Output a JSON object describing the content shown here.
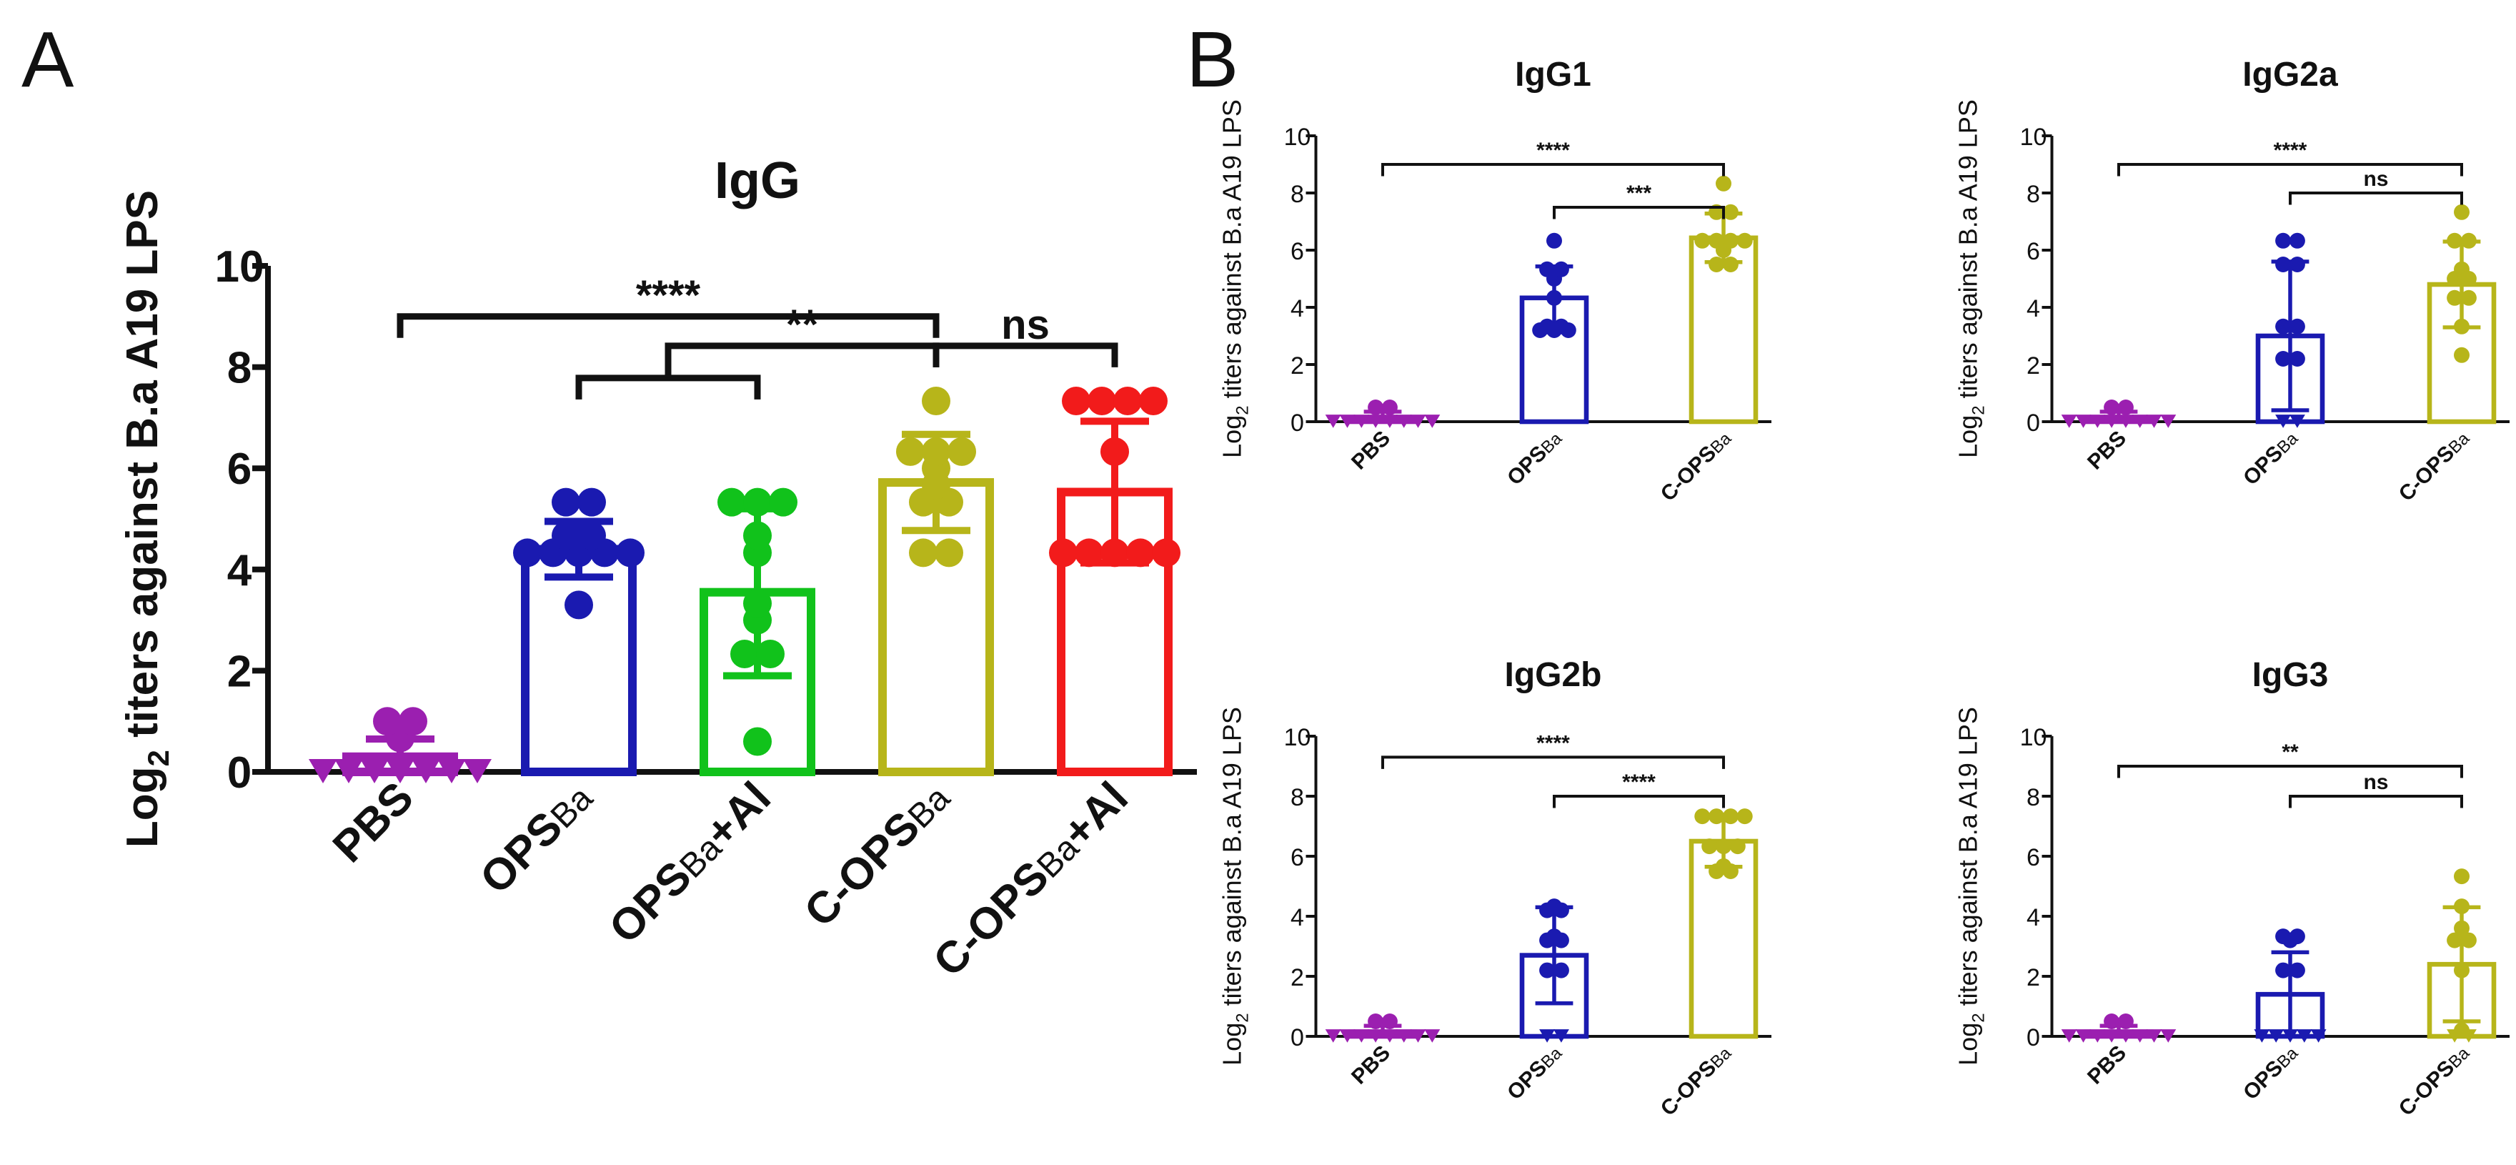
{
  "panels": {
    "a": "A",
    "b": "B"
  },
  "ylabel_main": "Log",
  "ylabel_sub": "2",
  "ylabel_rest": " titers against B.a A19 LPS",
  "colors": {
    "PBS": "#9b1fb0",
    "OPS": "#1a1ab0",
    "OPS_AL": "#11c21b",
    "COPS": "#b7b51a",
    "COPS_AL": "#f21b1b",
    "axis": "#111111"
  },
  "chart_data": [
    {
      "id": "A",
      "type": "bar",
      "title": "IgG",
      "ylim": [
        0,
        10
      ],
      "yticks": [
        0,
        2,
        4,
        6,
        8,
        10
      ],
      "categories": [
        {
          "main": "PBS",
          "sub": "",
          "tail": "",
          "color": "PBS",
          "mean": 0.3,
          "sd": 0.35,
          "points": [
            0,
            0,
            0,
            0,
            0,
            0,
            0,
            0.67,
            1.0,
            1.0
          ]
        },
        {
          "main": "OPS",
          "sub": "Ba",
          "tail": "",
          "color": "OPS",
          "mean": 4.4,
          "sd": 0.55,
          "points": [
            3.3,
            4.33,
            4.33,
            4.33,
            4.33,
            4.33,
            4.67,
            4.67,
            5.33,
            5.33
          ]
        },
        {
          "main": "OPS",
          "sub": "Ba",
          "tail": "+Al",
          "color": "OPS_AL",
          "mean": 3.55,
          "sd": 1.65,
          "points": [
            0.6,
            2.33,
            2.33,
            3.0,
            3.33,
            4.33,
            4.67,
            5.33,
            5.33,
            5.33
          ]
        },
        {
          "main": "C-OPS",
          "sub": "Ba",
          "tail": "",
          "color": "COPS",
          "mean": 5.72,
          "sd": 0.95,
          "points": [
            4.33,
            4.33,
            5.33,
            5.33,
            5.67,
            6.0,
            6.33,
            6.33,
            6.33,
            7.33
          ]
        },
        {
          "main": "C-OPS",
          "sub": "Ba",
          "tail": "+Al",
          "color": "COPS_AL",
          "mean": 5.53,
          "sd": 1.4,
          "points": [
            4.33,
            4.33,
            4.33,
            4.33,
            4.33,
            6.33,
            7.33,
            7.33,
            7.33,
            7.33
          ]
        }
      ],
      "comparisons": [
        {
          "from": 0,
          "to": 3,
          "y": 9.0,
          "label": "****"
        },
        {
          "from": [
            1,
            2
          ],
          "to": 3,
          "y": 8.42,
          "label": "**"
        },
        {
          "from": 3,
          "to": 4,
          "y": 8.42,
          "label": "ns"
        }
      ]
    },
    {
      "id": "B1",
      "type": "bar",
      "title": "IgG1",
      "ylim": [
        0,
        10
      ],
      "yticks": [
        0,
        2,
        4,
        6,
        8,
        10
      ],
      "categories": [
        {
          "main": "PBS",
          "sub": "",
          "tail": "",
          "color": "PBS",
          "mean": 0.15,
          "sd": 0.2,
          "points": [
            0,
            0,
            0,
            0,
            0,
            0,
            0,
            0,
            0.5,
            0.5
          ]
        },
        {
          "main": "OPS",
          "sub": "Ba",
          "tail": "",
          "color": "OPS",
          "mean": 4.33,
          "sd": 1.1,
          "points": [
            3.2,
            3.2,
            3.2,
            3.33,
            3.33,
            4.33,
            5.0,
            5.33,
            5.33,
            6.33
          ]
        },
        {
          "main": "C-OPS",
          "sub": "Ba",
          "tail": "",
          "color": "COPS",
          "mean": 6.43,
          "sd": 0.85,
          "points": [
            5.5,
            5.5,
            6.0,
            6.33,
            6.33,
            6.33,
            6.33,
            7.33,
            7.33,
            8.33
          ]
        }
      ],
      "comparisons": [
        {
          "from": 0,
          "to": 2,
          "y": 9.0,
          "label": "****"
        },
        {
          "from": 1,
          "to": 2,
          "y": 7.5,
          "label": "***"
        }
      ]
    },
    {
      "id": "B2",
      "type": "bar",
      "title": "IgG2a",
      "ylim": [
        0,
        10
      ],
      "yticks": [
        0,
        2,
        4,
        6,
        8,
        10
      ],
      "categories": [
        {
          "main": "PBS",
          "sub": "",
          "tail": "",
          "color": "PBS",
          "mean": 0.15,
          "sd": 0.2,
          "points": [
            0,
            0,
            0,
            0,
            0,
            0,
            0,
            0,
            0.5,
            0.5
          ]
        },
        {
          "main": "OPS",
          "sub": "Ba",
          "tail": "",
          "color": "OPS",
          "mean": 3.0,
          "sd": 2.6,
          "points": [
            0,
            0,
            2.2,
            2.2,
            3.33,
            3.33,
            5.5,
            5.5,
            6.33,
            6.33
          ]
        },
        {
          "main": "C-OPS",
          "sub": "Ba",
          "tail": "",
          "color": "COPS",
          "mean": 4.8,
          "sd": 1.5,
          "points": [
            2.33,
            3.33,
            4.33,
            4.33,
            5.0,
            5.0,
            5.33,
            6.33,
            6.33,
            7.33
          ]
        }
      ],
      "comparisons": [
        {
          "from": 0,
          "to": 2,
          "y": 9.0,
          "label": "****"
        },
        {
          "from": 1,
          "to": 2,
          "y": 8.0,
          "label": "ns"
        }
      ]
    },
    {
      "id": "B3",
      "type": "bar",
      "title": "IgG2b",
      "ylim": [
        0,
        10
      ],
      "yticks": [
        0,
        2,
        4,
        6,
        8,
        10
      ],
      "categories": [
        {
          "main": "PBS",
          "sub": "",
          "tail": "",
          "color": "PBS",
          "mean": 0.15,
          "sd": 0.2,
          "points": [
            0,
            0,
            0,
            0,
            0,
            0,
            0,
            0,
            0.5,
            0.5
          ]
        },
        {
          "main": "OPS",
          "sub": "Ba",
          "tail": "",
          "color": "OPS",
          "mean": 2.7,
          "sd": 1.6,
          "points": [
            0,
            0,
            2.2,
            2.2,
            3.2,
            3.2,
            3.33,
            4.2,
            4.2,
            4.33
          ]
        },
        {
          "main": "C-OPS",
          "sub": "Ba",
          "tail": "",
          "color": "COPS",
          "mean": 6.5,
          "sd": 0.85,
          "points": [
            5.5,
            5.5,
            5.67,
            6.33,
            6.33,
            6.33,
            7.33,
            7.33,
            7.33,
            7.33
          ]
        }
      ],
      "comparisons": [
        {
          "from": 0,
          "to": 2,
          "y": 9.3,
          "label": "****"
        },
        {
          "from": 1,
          "to": 2,
          "y": 8.0,
          "label": "****"
        }
      ]
    },
    {
      "id": "B4",
      "type": "bar",
      "title": "IgG3",
      "ylim": [
        0,
        10
      ],
      "yticks": [
        0,
        2,
        4,
        6,
        8,
        10
      ],
      "categories": [
        {
          "main": "PBS",
          "sub": "",
          "tail": "",
          "color": "PBS",
          "mean": 0.15,
          "sd": 0.2,
          "points": [
            0,
            0,
            0,
            0,
            0,
            0,
            0,
            0,
            0.5,
            0.5
          ]
        },
        {
          "main": "OPS",
          "sub": "Ba",
          "tail": "",
          "color": "OPS",
          "mean": 1.4,
          "sd": 1.4,
          "points": [
            0,
            0,
            0,
            0,
            0,
            2.2,
            2.2,
            3.2,
            3.33,
            3.33
          ]
        },
        {
          "main": "C-OPS",
          "sub": "Ba",
          "tail": "",
          "color": "COPS",
          "mean": 2.4,
          "sd": 1.9,
          "points": [
            0,
            0,
            0.2,
            2.2,
            3.2,
            3.2,
            3.33,
            4.33,
            5.33,
            3.6
          ]
        }
      ],
      "comparisons": [
        {
          "from": 0,
          "to": 2,
          "y": 9.0,
          "label": "**"
        },
        {
          "from": 1,
          "to": 2,
          "y": 8.0,
          "label": "ns"
        }
      ]
    }
  ]
}
